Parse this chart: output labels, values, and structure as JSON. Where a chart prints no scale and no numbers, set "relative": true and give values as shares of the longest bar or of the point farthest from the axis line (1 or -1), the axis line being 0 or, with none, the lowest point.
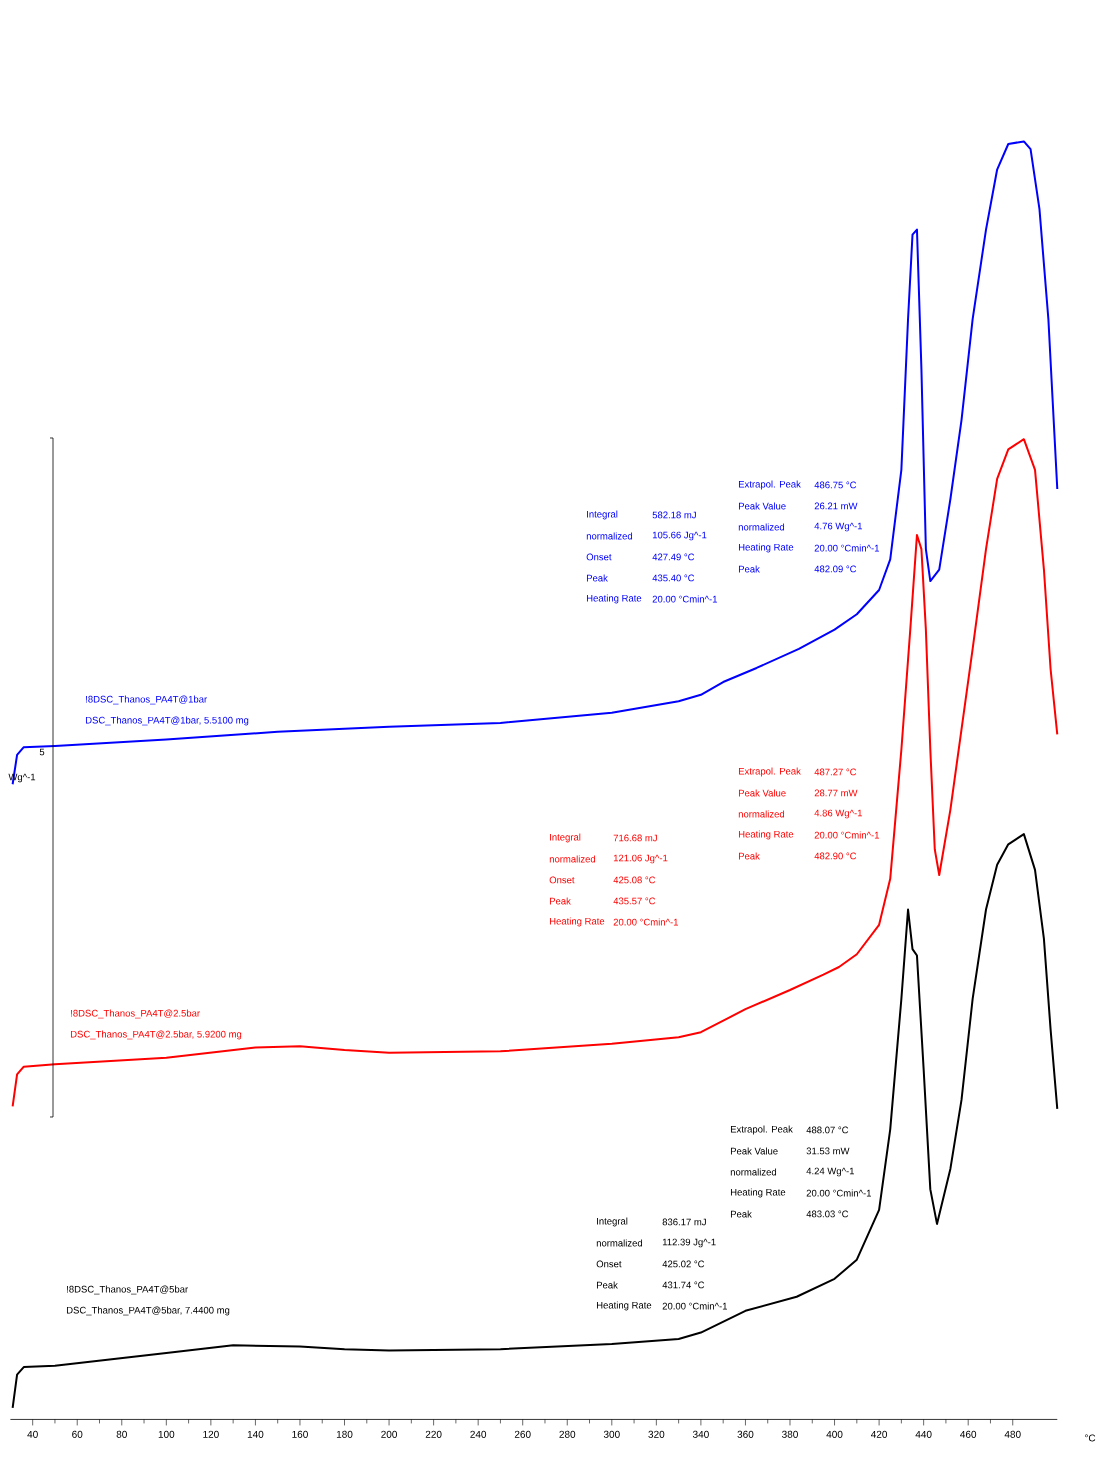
{
  "chart_data": {
    "type": "line",
    "relative": true,
    "xlabel": "°C",
    "ylabel": "Wg^-1",
    "xlim": [
      30,
      500
    ],
    "xticks": [
      40,
      60,
      80,
      100,
      120,
      140,
      160,
      180,
      200,
      220,
      240,
      260,
      280,
      300,
      320,
      340,
      360,
      380,
      400,
      420,
      440,
      460,
      480
    ],
    "legend": false,
    "series": [
      {
        "name": "!8DSC_Thanos_PA4T@1bar",
        "color": "#0000ff",
        "x": [
          31,
          33,
          36,
          50,
          100,
          150,
          200,
          250,
          300,
          330,
          340,
          350,
          365,
          384,
          400,
          410,
          420,
          425,
          430,
          433,
          435,
          437,
          439,
          441,
          443,
          447,
          452,
          457,
          462,
          468,
          473,
          478,
          485,
          488,
          492,
          496,
          500
        ],
        "values": [
          0.497,
          0.52,
          0.526,
          0.527,
          0.532,
          0.538,
          0.542,
          0.545,
          0.553,
          0.562,
          0.567,
          0.577,
          0.588,
          0.603,
          0.618,
          0.63,
          0.649,
          0.673,
          0.743,
          0.861,
          0.927,
          0.931,
          0.822,
          0.681,
          0.656,
          0.665,
          0.72,
          0.782,
          0.861,
          0.931,
          0.978,
          0.998,
          1,
          0.994,
          0.947,
          0.861,
          0.728
        ]
      },
      {
        "name": "!8DSC_Thanos_PA4T@2.5bar",
        "color": "#ff0000",
        "x": [
          31,
          33,
          36,
          50,
          100,
          140,
          160,
          180,
          200,
          250,
          300,
          330,
          340,
          360,
          380,
          395,
          402,
          410,
          420,
          425,
          430,
          434,
          437,
          439,
          441,
          443,
          445,
          447,
          452,
          457,
          462,
          468,
          473,
          478,
          485,
          490,
          494,
          497,
          500
        ],
        "values": [
          0.245,
          0.27,
          0.276,
          0.278,
          0.283,
          0.291,
          0.292,
          0.289,
          0.287,
          0.288,
          0.294,
          0.299,
          0.303,
          0.321,
          0.336,
          0.348,
          0.354,
          0.364,
          0.387,
          0.423,
          0.524,
          0.618,
          0.692,
          0.681,
          0.618,
          0.524,
          0.446,
          0.426,
          0.477,
          0.54,
          0.603,
          0.681,
          0.736,
          0.759,
          0.767,
          0.743,
          0.665,
          0.587,
          0.536
        ]
      },
      {
        "name": "!8DSC_Thanos_PA4T@5bar",
        "color": "#000000",
        "x": [
          31,
          33,
          36,
          50,
          100,
          130,
          160,
          180,
          200,
          250,
          300,
          330,
          340,
          360,
          383,
          400,
          410,
          420,
          425,
          430,
          433,
          435,
          437,
          440,
          443,
          446,
          452,
          457,
          462,
          468,
          473,
          478,
          485,
          490,
          494,
          497,
          500
        ],
        "values": [
          0.009,
          0.035,
          0.041,
          0.042,
          0.052,
          0.058,
          0.057,
          0.055,
          0.054,
          0.055,
          0.059,
          0.063,
          0.068,
          0.085,
          0.096,
          0.11,
          0.125,
          0.164,
          0.227,
          0.329,
          0.399,
          0.368,
          0.363,
          0.274,
          0.18,
          0.153,
          0.196,
          0.25,
          0.329,
          0.399,
          0.434,
          0.45,
          0.458,
          0.43,
          0.376,
          0.305,
          0.243
        ]
      }
    ],
    "annotations": [
      "DSC_Thanos_PA4T@1bar, 5.5100 mg",
      "Integral",
      "582.18 mJ",
      "normalized",
      "105.66 Jg^-1",
      "Onset",
      "427.49 °C",
      "Peak",
      "435.40 °C",
      "Heating Rate",
      "20.00 °Cmin^-1",
      "Extrapol. Peak",
      "486.75 °C",
      "Peak Value",
      "26.21 mW",
      "normalized",
      "4.76 Wg^-1",
      "Heating Rate",
      "20.00 °Cmin^-1",
      "Peak",
      "482.09 °C",
      "DSC_Thanos_PA4T@2.5bar, 5.9200 mg",
      "Integral",
      "716.68 mJ",
      "normalized",
      "121.06 Jg^-1",
      "Onset",
      "425.08 °C",
      "Peak",
      "435.57 °C",
      "Heating Rate",
      "20.00 °Cmin^-1",
      "Extrapol. Peak",
      "487.27 °C",
      "Peak Value",
      "28.77 mW",
      "normalized",
      "4.86 Wg^-1",
      "Heating Rate",
      "20.00 °Cmin^-1",
      "Peak",
      "482.90 °C",
      "DSC_Thanos_PA4T@5bar, 7.4400 mg",
      "Integral",
      "836.17 mJ",
      "normalized",
      "112.39 Jg^-1",
      "Onset",
      "425.02 °C",
      "Peak",
      "431.74 °C",
      "Heating Rate",
      "20.00 °Cmin^-1",
      "Extrapol. Peak",
      "488.07 °C",
      "Peak Value",
      "31.53 mW",
      "normalized",
      "4.24 Wg^-1",
      "Heating Rate",
      "20.00 °Cmin^-1",
      "Peak",
      "483.03 °C",
      "5"
    ]
  }
}
